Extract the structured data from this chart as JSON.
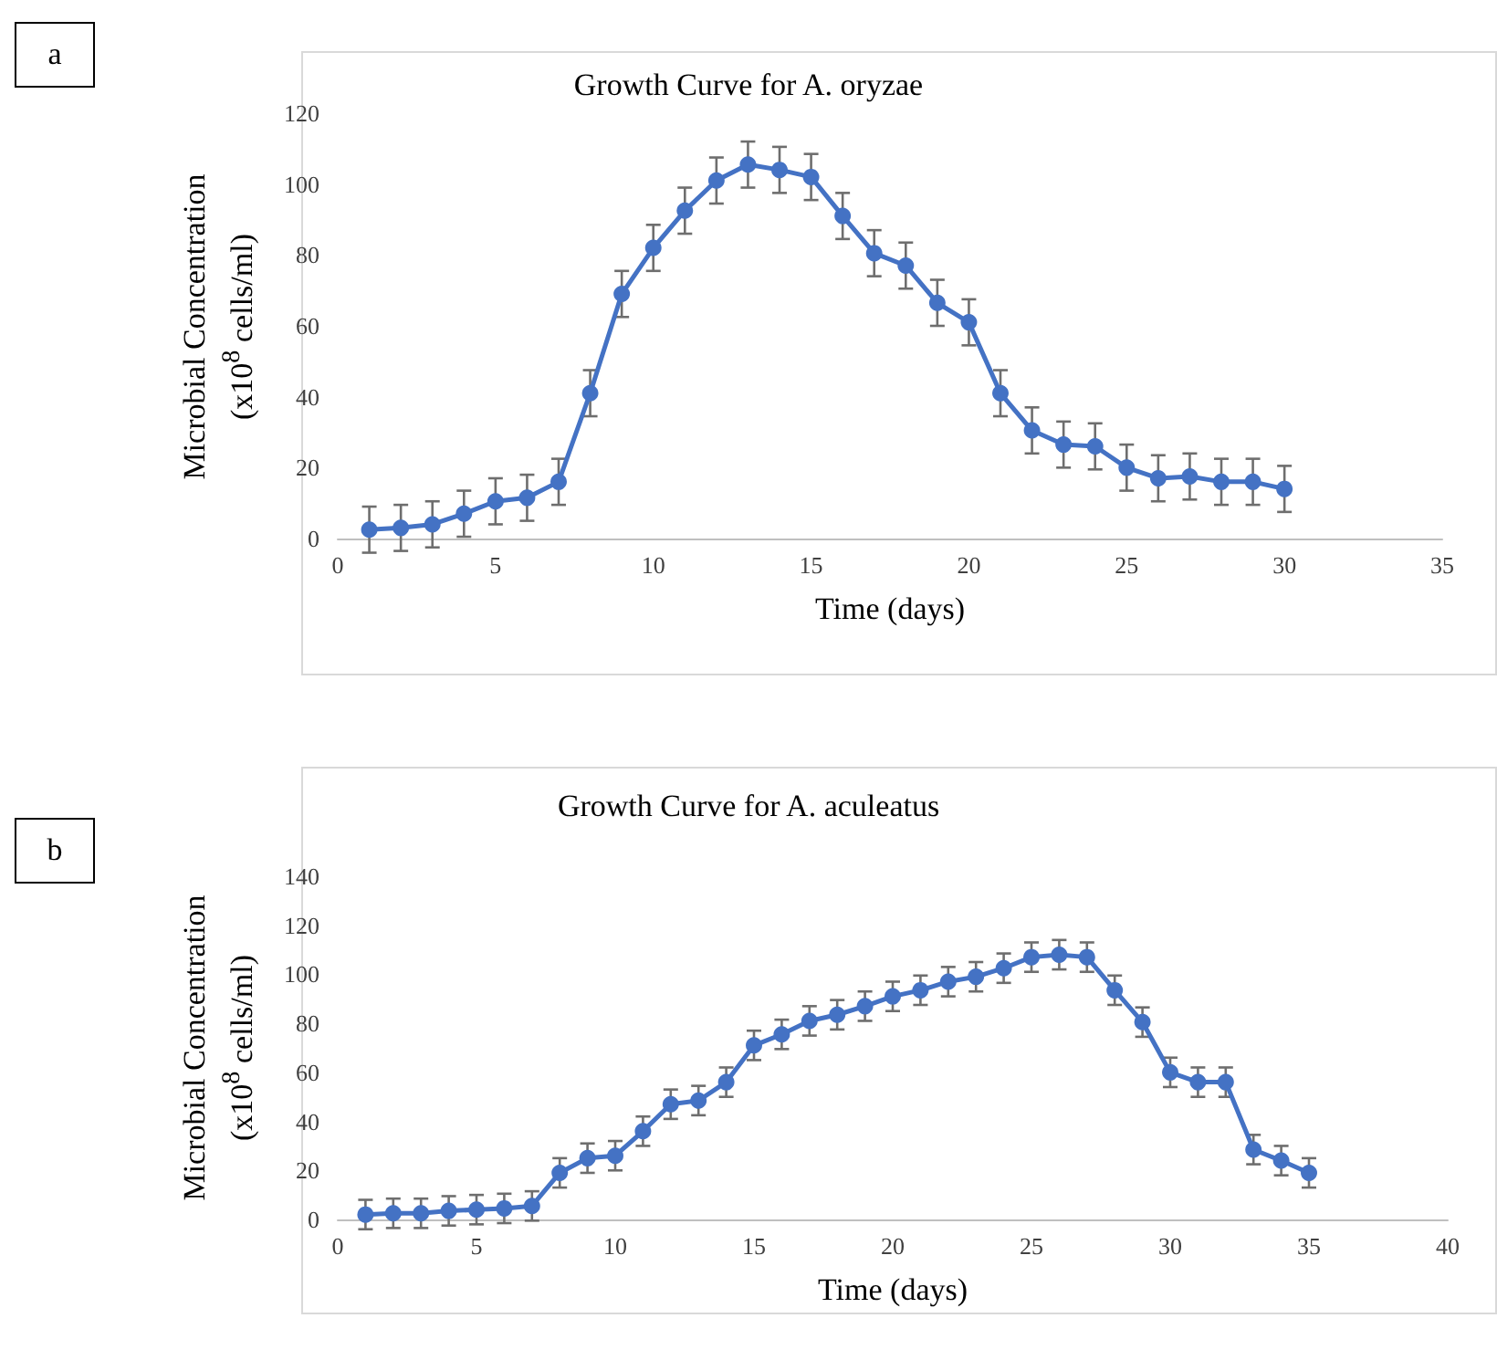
{
  "chart_data": [
    {
      "type": "line",
      "title": "Growth Curve for A. oryzae",
      "xlabel": "Time (days)",
      "ylabel": "Microbial Concentration (x10$^{8}$ cells/ml)",
      "annotations": [
        "a"
      ],
      "x": [
        1,
        2,
        3,
        4,
        5,
        6,
        7,
        8,
        9,
        10,
        11,
        12,
        13,
        14,
        15,
        16,
        17,
        18,
        19,
        20,
        21,
        22,
        23,
        24,
        25,
        26,
        27,
        28,
        29,
        30
      ],
      "series": [
        {
          "color": "#4472c4",
          "values": [
            2.5,
            3,
            4,
            7,
            10.5,
            11.5,
            16,
            41,
            69,
            82,
            92.5,
            101,
            105.5,
            104,
            102,
            91,
            80.5,
            77,
            66.5,
            61,
            41,
            30.5,
            26.5,
            26,
            20,
            17,
            17.5,
            16,
            16,
            14
          ],
          "errors": [
            6.5,
            6.5,
            6.5,
            6.5,
            6.5,
            6.5,
            6.5,
            6.5,
            6.5,
            6.5,
            6.5,
            6.5,
            6.5,
            6.5,
            6.5,
            6.5,
            6.5,
            6.5,
            6.5,
            6.5,
            6.5,
            6.5,
            6.5,
            6.5,
            6.5,
            6.5,
            6.5,
            6.5,
            6.5,
            6.5
          ]
        }
      ],
      "xlim": [
        0,
        35
      ],
      "xticks": [
        0,
        5,
        10,
        15,
        20,
        25,
        30,
        35
      ],
      "ylim": [
        0,
        120
      ],
      "yticks": [
        0,
        20,
        40,
        60,
        80,
        100,
        120
      ],
      "grid": false,
      "marker": "circle",
      "line_style": "solid"
    },
    {
      "type": "line",
      "title": "Growth Curve for A. aculeatus",
      "xlabel": "Time (days)",
      "ylabel": "Microbial Concentration (x10$^{8}$ cells/ml)",
      "annotations": [
        "b"
      ],
      "x": [
        1,
        2,
        3,
        4,
        5,
        6,
        7,
        8,
        9,
        10,
        11,
        12,
        13,
        14,
        15,
        16,
        17,
        18,
        19,
        20,
        21,
        22,
        23,
        24,
        25,
        26,
        27,
        28,
        29,
        30,
        31,
        32,
        33,
        34,
        35
      ],
      "series": [
        {
          "color": "#4472c4",
          "values": [
            2,
            2.5,
            2.5,
            3.5,
            4,
            4.5,
            5.5,
            19,
            25,
            26,
            36,
            47,
            48.5,
            56,
            71,
            75.5,
            81,
            83.5,
            87,
            91,
            93.5,
            97,
            99,
            102.5,
            107,
            108,
            107,
            93.5,
            80.5,
            60,
            56,
            56,
            28.5,
            24,
            19
          ],
          "errors": [
            6,
            6,
            6,
            6,
            6,
            6,
            6,
            6,
            6,
            6,
            6,
            6,
            6,
            6,
            6,
            6,
            6,
            6,
            6,
            6,
            6,
            6,
            6,
            6,
            6,
            6,
            6,
            6,
            6,
            6,
            6,
            6,
            6,
            6,
            6
          ]
        }
      ],
      "xlim": [
        0,
        40
      ],
      "xticks": [
        0,
        5,
        10,
        15,
        20,
        25,
        30,
        35,
        40
      ],
      "ylim": [
        0,
        140
      ],
      "yticks": [
        0,
        20,
        40,
        60,
        80,
        100,
        120,
        140
      ],
      "grid": false,
      "marker": "circle",
      "line_style": "solid"
    }
  ]
}
